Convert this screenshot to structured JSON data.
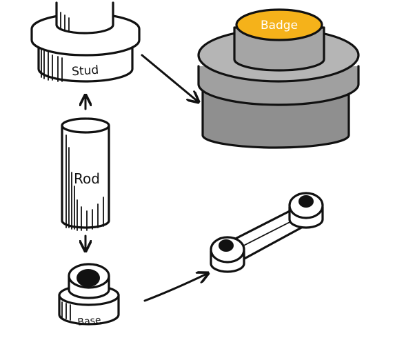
{
  "labels": {
    "stud": "Stud",
    "rod": "Rod",
    "base": "Base",
    "badge": "Badge"
  },
  "colors": {
    "badge": "#f5b21a",
    "badge_text": "#ffffff",
    "assembly_light": "#b5b5b5",
    "assembly_mid": "#a0a0a0",
    "assembly_dark": "#8f8f8f",
    "ink": "#111111"
  }
}
